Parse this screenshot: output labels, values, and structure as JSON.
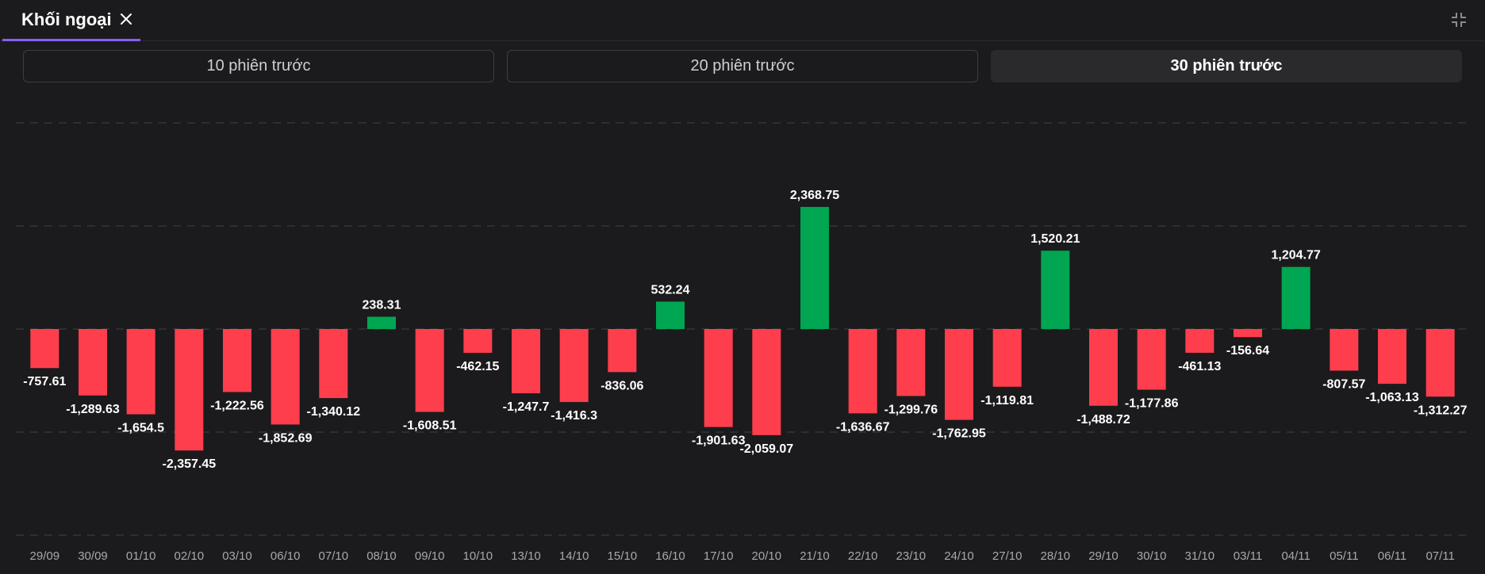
{
  "tab": {
    "title": "Khối ngoại"
  },
  "segments": [
    {
      "label": "10 phiên trước",
      "active": false
    },
    {
      "label": "20 phiên trước",
      "active": false
    },
    {
      "label": "30 phiên trước",
      "active": true
    }
  ],
  "colors": {
    "positive": "#00a651",
    "negative": "#ff3e4d",
    "grid": "#3a3a3e",
    "accent": "#8b5cf6"
  },
  "chart_data": {
    "type": "bar",
    "title": "",
    "xlabel": "",
    "ylabel": "",
    "ylim": [
      -4000,
      4000
    ],
    "grid": true,
    "categories": [
      "29/09",
      "30/09",
      "01/10",
      "02/10",
      "03/10",
      "06/10",
      "07/10",
      "08/10",
      "09/10",
      "10/10",
      "13/10",
      "14/10",
      "15/10",
      "16/10",
      "17/10",
      "20/10",
      "21/10",
      "22/10",
      "23/10",
      "24/10",
      "27/10",
      "28/10",
      "29/10",
      "30/10",
      "31/10",
      "03/11",
      "04/11",
      "05/11",
      "06/11",
      "07/11"
    ],
    "values": [
      -757.61,
      -1289.63,
      -1654.5,
      -2357.45,
      -1222.56,
      -1852.69,
      -1340.12,
      238.31,
      -1608.51,
      -462.15,
      -1247.7,
      -1416.3,
      -836.06,
      532.24,
      -1901.63,
      -2059.07,
      2368.75,
      -1636.67,
      -1299.76,
      -1762.95,
      -1119.81,
      1520.21,
      -1488.72,
      -1177.86,
      -461.13,
      -156.64,
      1204.77,
      -807.57,
      -1063.13,
      -1312.27
    ],
    "labels": [
      "-757.61",
      "-1,289.63",
      "-1,654.5",
      "-2,357.45",
      "-1,222.56",
      "-1,852.69",
      "-1,340.12",
      "238.31",
      "-1,608.51",
      "-462.15",
      "-1,247.7",
      "-1,416.3",
      "-836.06",
      "532.24",
      "-1,901.63",
      "-2,059.07",
      "2,368.75",
      "-1,636.67",
      "-1,299.76",
      "-1,762.95",
      "-1,119.81",
      "1,520.21",
      "-1,488.72",
      "-1,177.86",
      "-461.13",
      "-156.64",
      "1,204.77",
      "-807.57",
      "-1,063.13",
      "-1,312.27"
    ]
  }
}
